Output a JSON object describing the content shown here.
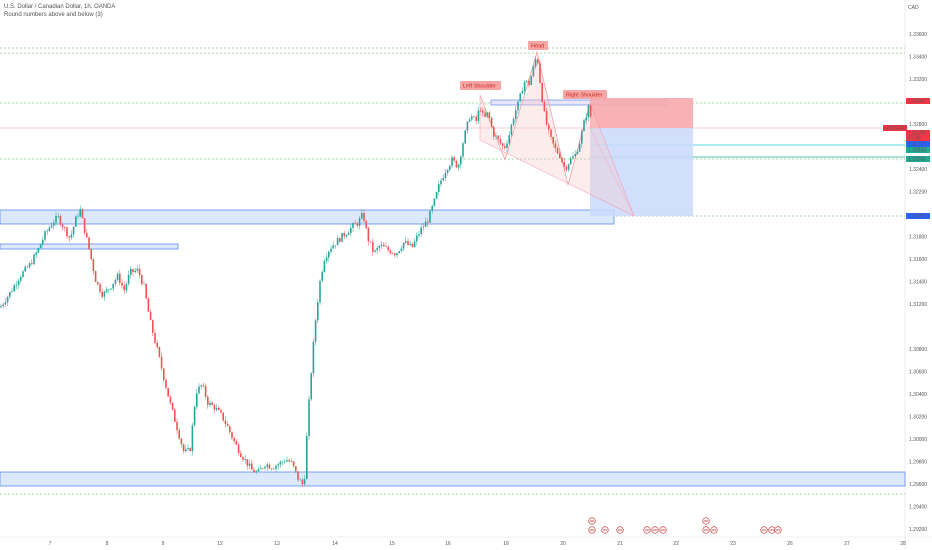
{
  "header": {
    "symbol_line": "U.S. Dollar / Canadian Dollar, 1h, OANDA",
    "subtitle": "Round numbers above and below (3)"
  },
  "currency": "CAD",
  "price_axis": {
    "ticks": [
      "1.33600",
      "1.33400",
      "1.33200",
      "1.32800",
      "1.32400",
      "1.32200",
      "1.31800",
      "1.31600",
      "1.31400",
      "1.31200",
      "1.30800",
      "1.30600",
      "1.30400",
      "1.30200",
      "1.30000",
      "1.29800",
      "1.29600",
      "1.29400",
      "1.29200"
    ]
  },
  "price_badges": [
    {
      "text": "1.33047",
      "kind": "red"
    },
    {
      "text": "USDCAD",
      "kind": "red"
    },
    {
      "text": "1.32782",
      "kind": "red"
    },
    {
      "text": "27:39",
      "kind": "red"
    },
    {
      "text": "1.32770",
      "kind": "blue"
    },
    {
      "text": "1.32630",
      "kind": "teal"
    },
    {
      "text": "1.32551",
      "kind": "teal"
    },
    {
      "text": "1.32009",
      "kind": "blue"
    }
  ],
  "time_axis": {
    "labels": [
      "7",
      "8",
      "9",
      "12",
      "13",
      "14",
      "15",
      "16",
      "19",
      "20",
      "21",
      "22",
      "23",
      "26",
      "27",
      "28"
    ]
  },
  "annotations": {
    "head": "Head",
    "left_shoulder": "Left Shoulder",
    "right_shoulder": "Right Shoulder"
  },
  "colors": {
    "up": "#26a69a",
    "down": "#ef5350",
    "stop_zone": "#f7a8ac",
    "target_zone": "#c9d9fb",
    "zone_border": "#4c7ee8",
    "zone_fill": "#dce8fb"
  },
  "chart_data": {
    "type": "candlestick",
    "title": "U.S. Dollar / Canadian Dollar, 1h, OANDA",
    "ylim": [
      1.2915,
      1.3375
    ],
    "last_price": 1.32782,
    "levels": {
      "resistance": 1.33047,
      "support_top": 1.32009,
      "entry": 1.32782,
      "target": 1.32009
    },
    "close_path": [
      [
        0,
        1.3117
      ],
      [
        10,
        1.313
      ],
      [
        20,
        1.3145
      ],
      [
        30,
        1.3155
      ],
      [
        38,
        1.3168
      ],
      [
        45,
        1.3182
      ],
      [
        52,
        1.3192
      ],
      [
        58,
        1.3197
      ],
      [
        64,
        1.3188
      ],
      [
        70,
        1.3178
      ],
      [
        76,
        1.3196
      ],
      [
        80,
        1.3204
      ],
      [
        84,
        1.3188
      ],
      [
        90,
        1.3165
      ],
      [
        96,
        1.314
      ],
      [
        103,
        1.3128
      ],
      [
        110,
        1.3135
      ],
      [
        118,
        1.3145
      ],
      [
        124,
        1.3132
      ],
      [
        130,
        1.3148
      ],
      [
        138,
        1.315
      ],
      [
        144,
        1.3135
      ],
      [
        150,
        1.3105
      ],
      [
        157,
        1.308
      ],
      [
        163,
        1.3058
      ],
      [
        170,
        1.3032
      ],
      [
        177,
        1.301
      ],
      [
        184,
        1.2988
      ],
      [
        190,
        1.299
      ],
      [
        196,
        1.3042
      ],
      [
        202,
        1.3048
      ],
      [
        208,
        1.3032
      ],
      [
        215,
        1.3028
      ],
      [
        222,
        1.302
      ],
      [
        228,
        1.301
      ],
      [
        234,
        1.2998
      ],
      [
        240,
        1.2988
      ],
      [
        246,
        1.298
      ],
      [
        252,
        1.2972
      ],
      [
        258,
        1.297
      ],
      [
        265,
        1.2978
      ],
      [
        272,
        1.2975
      ],
      [
        279,
        1.2978
      ],
      [
        286,
        1.2982
      ],
      [
        292,
        1.2978
      ],
      [
        298,
        1.2965
      ],
      [
        304,
        1.2958
      ],
      [
        308,
        1.302
      ],
      [
        312,
        1.307
      ],
      [
        316,
        1.311
      ],
      [
        320,
        1.314
      ],
      [
        324,
        1.316
      ],
      [
        330,
        1.317
      ],
      [
        336,
        1.3175
      ],
      [
        342,
        1.318
      ],
      [
        348,
        1.3185
      ],
      [
        354,
        1.319
      ],
      [
        358,
        1.3192
      ],
      [
        363,
        1.32
      ],
      [
        368,
        1.3178
      ],
      [
        374,
        1.3165
      ],
      [
        380,
        1.3172
      ],
      [
        388,
        1.3168
      ],
      [
        396,
        1.3165
      ],
      [
        404,
        1.3175
      ],
      [
        412,
        1.317
      ],
      [
        420,
        1.3185
      ],
      [
        428,
        1.3195
      ],
      [
        434,
        1.321
      ],
      [
        440,
        1.3228
      ],
      [
        446,
        1.324
      ],
      [
        452,
        1.3248
      ],
      [
        458,
        1.3242
      ],
      [
        464,
        1.3268
      ],
      [
        470,
        1.3288
      ],
      [
        476,
        1.3282
      ],
      [
        480,
        1.3296
      ],
      [
        484,
        1.3284
      ],
      [
        488,
        1.329
      ],
      [
        493,
        1.3272
      ],
      [
        498,
        1.3266
      ],
      [
        504,
        1.3258
      ],
      [
        509,
        1.327
      ],
      [
        514,
        1.3288
      ],
      [
        519,
        1.33
      ],
      [
        524,
        1.3318
      ],
      [
        529,
        1.3316
      ],
      [
        533,
        1.3328
      ],
      [
        537,
        1.3342
      ],
      [
        541,
        1.331
      ],
      [
        545,
        1.3285
      ],
      [
        550,
        1.3268
      ],
      [
        555,
        1.3258
      ],
      [
        560,
        1.3252
      ],
      [
        565,
        1.324
      ],
      [
        570,
        1.3248
      ],
      [
        575,
        1.3252
      ],
      [
        580,
        1.3265
      ],
      [
        585,
        1.3285
      ],
      [
        589,
        1.3296
      ],
      [
        592,
        1.3279
      ]
    ]
  }
}
